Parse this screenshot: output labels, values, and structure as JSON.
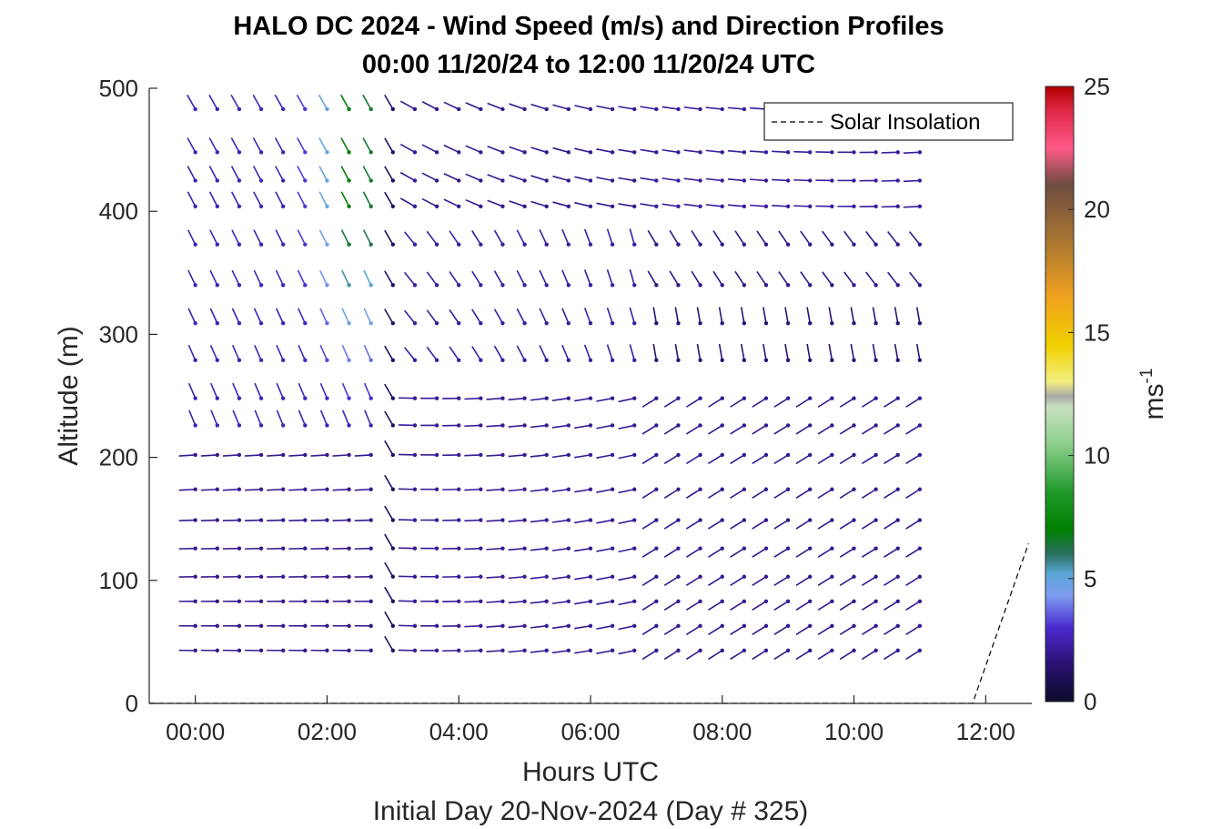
{
  "chart_data": {
    "type": "wind-barb-profile",
    "title_line1": "HALO DC 2024 - Wind Speed (m/s) and Direction Profiles",
    "title_line2": "00:00 11/20/24 to 12:00 11/20/24  UTC",
    "xlabel": "Hours UTC",
    "xlabel2": "Initial Day 20-Nov-2024 (Day # 325)",
    "ylabel": "Altitude (m)",
    "xlim": [
      -0.7,
      12.7
    ],
    "ylim": [
      0,
      500
    ],
    "x_ticks": [
      {
        "value": 0,
        "label": "00:00"
      },
      {
        "value": 2,
        "label": "02:00"
      },
      {
        "value": 4,
        "label": "04:00"
      },
      {
        "value": 6,
        "label": "06:00"
      },
      {
        "value": 8,
        "label": "08:00"
      },
      {
        "value": 10,
        "label": "10:00"
      },
      {
        "value": 12,
        "label": "12:00"
      }
    ],
    "y_ticks": [
      {
        "value": 0,
        "label": "0"
      },
      {
        "value": 100,
        "label": "100"
      },
      {
        "value": 200,
        "label": "200"
      },
      {
        "value": 300,
        "label": "300"
      },
      {
        "value": 400,
        "label": "400"
      },
      {
        "value": 500,
        "label": "500"
      }
    ],
    "legend": {
      "entries": [
        "Solar Insolation"
      ],
      "position": "top-right",
      "line_style": "dashed"
    },
    "colorbar": {
      "label": "ms",
      "label_superscript": "-1",
      "range": [
        0,
        25
      ],
      "ticks": [
        {
          "value": 0,
          "label": "0"
        },
        {
          "value": 5,
          "label": "5"
        },
        {
          "value": 10,
          "label": "10"
        },
        {
          "value": 15,
          "label": "15"
        },
        {
          "value": 20,
          "label": "20"
        },
        {
          "value": 25,
          "label": "25"
        }
      ],
      "stops": [
        {
          "v": 0,
          "c": "#0b0b2a"
        },
        {
          "v": 1.5,
          "c": "#2a1070"
        },
        {
          "v": 3,
          "c": "#4a2ad0"
        },
        {
          "v": 4.3,
          "c": "#7f9cf0"
        },
        {
          "v": 5.2,
          "c": "#5aa8d8"
        },
        {
          "v": 6,
          "c": "#2a7060"
        },
        {
          "v": 7,
          "c": "#008000"
        },
        {
          "v": 8.5,
          "c": "#1f9a2a"
        },
        {
          "v": 10.5,
          "c": "#8fd08f"
        },
        {
          "v": 12,
          "c": "#c8e0c0"
        },
        {
          "v": 12.4,
          "c": "#a8a8a8"
        },
        {
          "v": 13,
          "c": "#f4f080"
        },
        {
          "v": 14.5,
          "c": "#f0d000"
        },
        {
          "v": 16.5,
          "c": "#f0a020"
        },
        {
          "v": 18.5,
          "c": "#b07a30"
        },
        {
          "v": 21,
          "c": "#6e4c40"
        },
        {
          "v": 22.5,
          "c": "#ff5a88"
        },
        {
          "v": 24,
          "c": "#e02848"
        },
        {
          "v": 25,
          "c": "#b00000"
        }
      ]
    },
    "solar_insolation": {
      "x": [
        -0.7,
        11.8,
        12.65
      ],
      "y": [
        0,
        0,
        130
      ]
    },
    "altitudes_m": [
      43,
      63,
      83,
      103,
      126,
      149,
      174,
      202,
      226,
      248,
      279,
      309,
      340,
      373,
      404,
      425,
      448,
      483
    ],
    "time_start_h": 0,
    "time_step_h": 0.3333,
    "time_count": 34,
    "wind_field_regimes": [
      {
        "name": "early_low_level_westerly",
        "t_range_h": [
          0,
          2.8
        ],
        "alt_range_m": [
          0,
          215
        ],
        "speed_ms": [
          1.5,
          2.5
        ],
        "direction_deg": [
          265,
          280
        ]
      },
      {
        "name": "early_upper_north",
        "t_range_h": [
          0,
          2.8
        ],
        "alt_range_m": [
          215,
          500
        ],
        "speed_ms": [
          2.0,
          7.5
        ],
        "direction_deg": [
          330,
          350
        ]
      },
      {
        "name": "late_low_level_southwesterly",
        "t_range_h": [
          6.8,
          11
        ],
        "alt_range_m": [
          0,
          260
        ],
        "speed_ms": [
          1.5,
          2.5
        ],
        "direction_deg": [
          230,
          245
        ]
      },
      {
        "name": "late_upper_northwesterly",
        "t_range_h": [
          6.8,
          11
        ],
        "alt_range_m": [
          280,
          500
        ],
        "speed_ms": [
          1.5,
          3.0
        ],
        "direction_deg": [
          290,
          350
        ]
      }
    ]
  }
}
